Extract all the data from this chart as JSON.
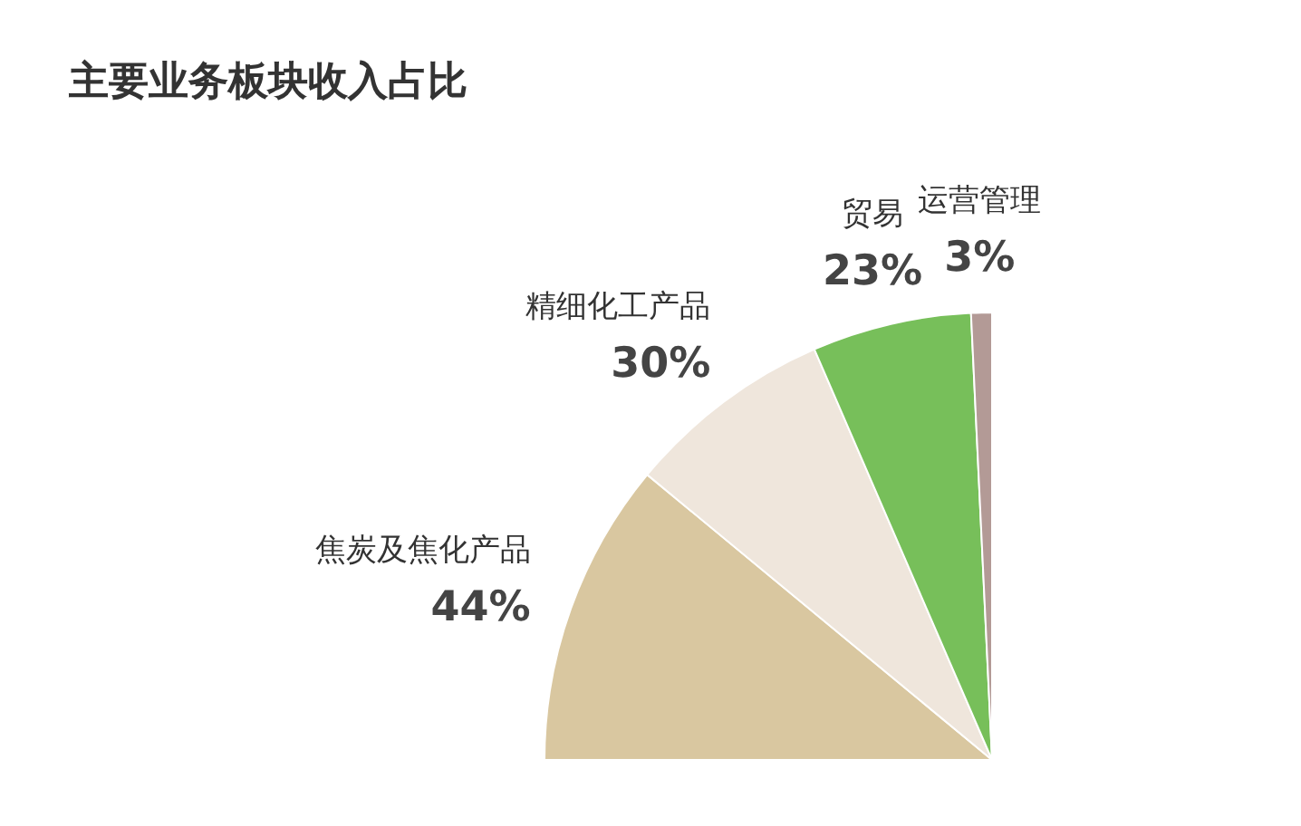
{
  "chart_data": {
    "type": "pie",
    "title": "主要业务板块收入占比",
    "categories": [
      "焦炭及焦化产品",
      "精细化工产品",
      "贸易",
      "运营管理"
    ],
    "values": [
      44,
      30,
      23,
      3
    ],
    "colors": [
      "#d9c7a0",
      "#efe6dc",
      "#77bf5a",
      "#b39a96"
    ],
    "value_labels": [
      "44%",
      "30%",
      "23%",
      "3%"
    ]
  }
}
